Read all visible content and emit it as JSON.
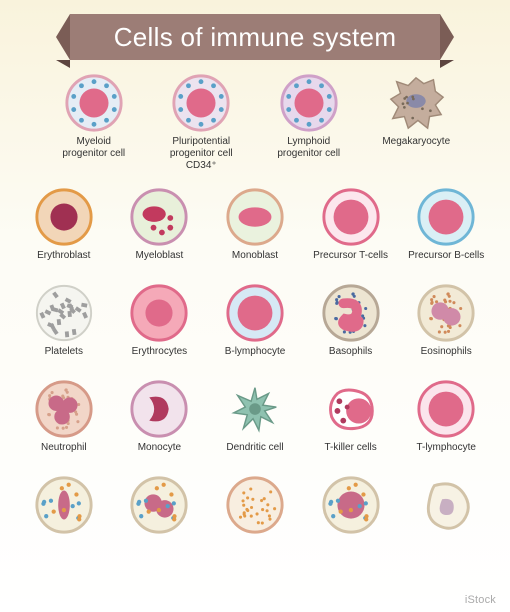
{
  "title": "Cells of immune system",
  "watermark": "iStock",
  "banner": {
    "bg": "#9c7d76",
    "fold": "#5c443f",
    "text_color": "#ffffff",
    "fontsize": 26
  },
  "background_gradient": [
    "#f9f3dc",
    "#ffffff"
  ],
  "icon_size": 62,
  "label_fontsize": 10,
  "layout": {
    "top_row_cols": 4,
    "body_cols": 5,
    "bottom_row_cols": 5
  },
  "cells": [
    {
      "id": "myeloid-progenitor",
      "label": "Myeloid\nprogenitor cell",
      "type": "progenitor",
      "ring": "#e0a3b4",
      "fill": "#e5edf5",
      "nucleus": "#e06a8a",
      "dots": "#5aa0c8"
    },
    {
      "id": "pluripotential",
      "label": "Pluripotential\nprogenitor cell CD34⁺",
      "type": "progenitor",
      "ring": "#e0a3b4",
      "fill": "#ece3ef",
      "nucleus": "#e06a8a",
      "dots": "#5aa0c8"
    },
    {
      "id": "lymphoid-progenitor",
      "label": "Lymphoid\nprogenitor cell",
      "type": "progenitor",
      "ring": "#cfa0c8",
      "fill": "#e7d8ec",
      "nucleus": "#e06a8a",
      "dots": "#5aa0c8"
    },
    {
      "id": "megakaryocyte",
      "label": "Megakaryocyte",
      "type": "amoeba",
      "body": "#c4ad9d",
      "nucleus": "#8a8aa8"
    },
    {
      "id": "erythroblast",
      "label": "Erythroblast",
      "type": "simple",
      "ring": "#e39a47",
      "fill": "#f2d6b8",
      "nucleus": "#a03052",
      "nshape": "round"
    },
    {
      "id": "myeloblast",
      "label": "Myeloblast",
      "type": "myeloblast",
      "ring": "#c98fb0",
      "fill": "#e8f0da",
      "nucleus": "#c23a5e",
      "dots": "#c23a5e"
    },
    {
      "id": "monoblast",
      "label": "Monoblast",
      "type": "simple",
      "ring": "#dca98c",
      "fill": "#eaf2de",
      "nucleus": "#e06a8a",
      "nshape": "oval"
    },
    {
      "id": "precursor-t",
      "label": "Precursor T-cells",
      "type": "simple",
      "ring": "#e06a8a",
      "fill": "#fce7ed",
      "nucleus": "#e06a8a",
      "nshape": "big"
    },
    {
      "id": "precursor-b",
      "label": "Precursor B-cells",
      "type": "simple",
      "ring": "#6fb6d6",
      "fill": "#daeff5",
      "nucleus": "#e06a8a",
      "nshape": "big"
    },
    {
      "id": "platelets",
      "label": "Platelets",
      "type": "platelets",
      "fill": "#f5f5f0",
      "chips": "#9e9e9e"
    },
    {
      "id": "erythrocytes",
      "label": "Erythrocytes",
      "type": "donut",
      "ring": "#e06a8a",
      "fill": "#f5a9b8",
      "inner": "#e06a8a"
    },
    {
      "id": "b-lymphocyte",
      "label": "B-lymphocyte",
      "type": "simple",
      "ring": "#e06a8a",
      "fill": "#d6e9f5",
      "nucleus": "#e06a8a",
      "nshape": "big"
    },
    {
      "id": "basophils",
      "label": "Basophils",
      "type": "granул",
      "ring": "#b7a896",
      "fill": "#ede5d2",
      "nucleus": "#e06a8a",
      "granules": "#4a6aa0",
      "nshape": "s"
    },
    {
      "id": "eosinophils",
      "label": "Eosinophils",
      "type": "granul",
      "ring": "#d2c3a8",
      "fill": "#f2ead6",
      "nucleus": "#d08aa8",
      "granules": "#d08a5a",
      "nshape": "bilobe"
    },
    {
      "id": "neutrophil",
      "label": "Neutrophil",
      "type": "granul",
      "ring": "#d69a88",
      "fill": "#f2d6c8",
      "nucleus": "#c86a88",
      "granules": "#d6a08a",
      "nshape": "trilobe"
    },
    {
      "id": "monocyte",
      "label": "Monocyte",
      "type": "simple",
      "ring": "#c98fb0",
      "fill": "#f2e3ec",
      "nucleus": "#b03a5e",
      "nshape": "kidney"
    },
    {
      "id": "dendritic",
      "label": "Dendritic cell",
      "type": "dendritic",
      "body": "#8fc2b0",
      "nucleus": "#6a9a88"
    },
    {
      "id": "t-killer",
      "label": "T-killer cells",
      "type": "tkiller",
      "ring": "#e06a8a",
      "fill": "#ffffff",
      "nucleus": "#e06a8a",
      "dots": "#b03a5e"
    },
    {
      "id": "t-lymphocyte",
      "label": "T-lymphocyte",
      "type": "simple",
      "ring": "#e06a8a",
      "fill": "#fbe5ec",
      "nucleus": "#e06a8a",
      "nshape": "big"
    },
    {
      "id": "immature-a",
      "label": "",
      "type": "immature",
      "ring": "#d2c3a8",
      "fill": "#f5f0de",
      "nucleus": "#c86a88",
      "nshape": "rod",
      "dots1": "#5aa0c8",
      "dots2": "#e39a47"
    },
    {
      "id": "immature-b",
      "label": "",
      "type": "immature",
      "ring": "#d2c3a8",
      "fill": "#f5f0de",
      "nucleus": "#c86a88",
      "nshape": "bilobe",
      "dots1": "#5aa0c8",
      "dots2": "#e39a47"
    },
    {
      "id": "immature-c",
      "label": "",
      "type": "sparse",
      "ring": "#dca98c",
      "fill": "#f8eee0",
      "granules": "#e39a47"
    },
    {
      "id": "immature-d",
      "label": "",
      "type": "immature",
      "ring": "#d2c3a8",
      "fill": "#f5f0de",
      "nucleus": "#c86a88",
      "nshape": "round",
      "dots1": "#5aa0c8",
      "dots2": "#e39a47"
    },
    {
      "id": "immature-e",
      "label": "",
      "type": "blob",
      "ring": "#d2c3a8",
      "fill": "#f7f2e4",
      "nucleus": "#c8afc2"
    }
  ]
}
